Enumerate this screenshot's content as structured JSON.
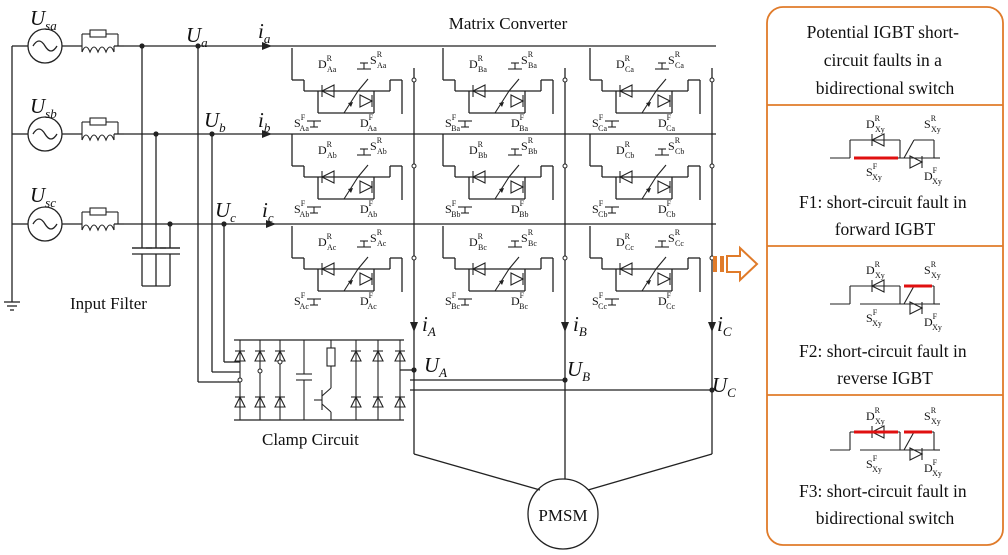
{
  "title": "Matrix Converter",
  "sources": [
    {
      "sym": "U",
      "sub": "sa"
    },
    {
      "sym": "U",
      "sub": "sb"
    },
    {
      "sym": "U",
      "sub": "sc"
    }
  ],
  "input_voltages": [
    {
      "sym": "U",
      "sub": "a"
    },
    {
      "sym": "U",
      "sub": "b"
    },
    {
      "sym": "U",
      "sub": "c"
    }
  ],
  "input_currents": [
    {
      "sym": "i",
      "sub": "a"
    },
    {
      "sym": "i",
      "sub": "b"
    },
    {
      "sym": "i",
      "sub": "c"
    }
  ],
  "output_currents": [
    {
      "sym": "i",
      "sub": "A"
    },
    {
      "sym": "i",
      "sub": "B"
    },
    {
      "sym": "i",
      "sub": "C"
    }
  ],
  "output_voltages": [
    {
      "sym": "U",
      "sub": "A"
    },
    {
      "sym": "U",
      "sub": "B"
    },
    {
      "sym": "U",
      "sub": "C"
    }
  ],
  "switch_cells": [
    {
      "d_r": "Aa",
      "s_r": "Aa",
      "s_f": "Aa",
      "d_f": "Aa"
    },
    {
      "d_r": "Ba",
      "s_r": "Ba",
      "s_f": "Ba",
      "d_f": "Ba"
    },
    {
      "d_r": "Ca",
      "s_r": "Ca",
      "s_f": "Ca",
      "d_f": "Ca"
    },
    {
      "d_r": "Ab",
      "s_r": "Ab",
      "s_f": "Ab",
      "d_f": "Ab"
    },
    {
      "d_r": "Bb",
      "s_r": "Bb",
      "s_f": "Bb",
      "d_f": "Bb"
    },
    {
      "d_r": "Cb",
      "s_r": "Cb",
      "s_f": "Cb",
      "d_f": "Cb"
    },
    {
      "d_r": "Ac",
      "s_r": "Ac",
      "s_f": "Ac",
      "d_f": "Ac"
    },
    {
      "d_r": "Bc",
      "s_r": "Bc",
      "s_f": "Bc",
      "d_f": "Bc"
    },
    {
      "d_r": "Cc",
      "s_r": "Cc",
      "s_f": "Cc",
      "d_f": "Cc"
    }
  ],
  "input_filter_label": "Input Filter",
  "clamp_circuit_label": "Clamp Circuit",
  "motor_label": "PMSM",
  "sup_r": "R",
  "sup_f": "F",
  "letter_d": "D",
  "letter_s": "S",
  "panel": {
    "accent_color": "#e07b2a",
    "fault_color": "#e01010",
    "header": [
      "Potential  IGBT short-",
      "circuit faults in a",
      "bidirectional switch"
    ],
    "generic_sub": "Xy",
    "faults": [
      {
        "lines": [
          "F1: short-circuit fault in",
          "forward IGBT"
        ]
      },
      {
        "lines": [
          "F2: short-circuit fault in",
          "reverse IGBT"
        ]
      },
      {
        "lines": [
          "F3: short-circuit fault in",
          "bidirectional switch"
        ]
      }
    ]
  }
}
